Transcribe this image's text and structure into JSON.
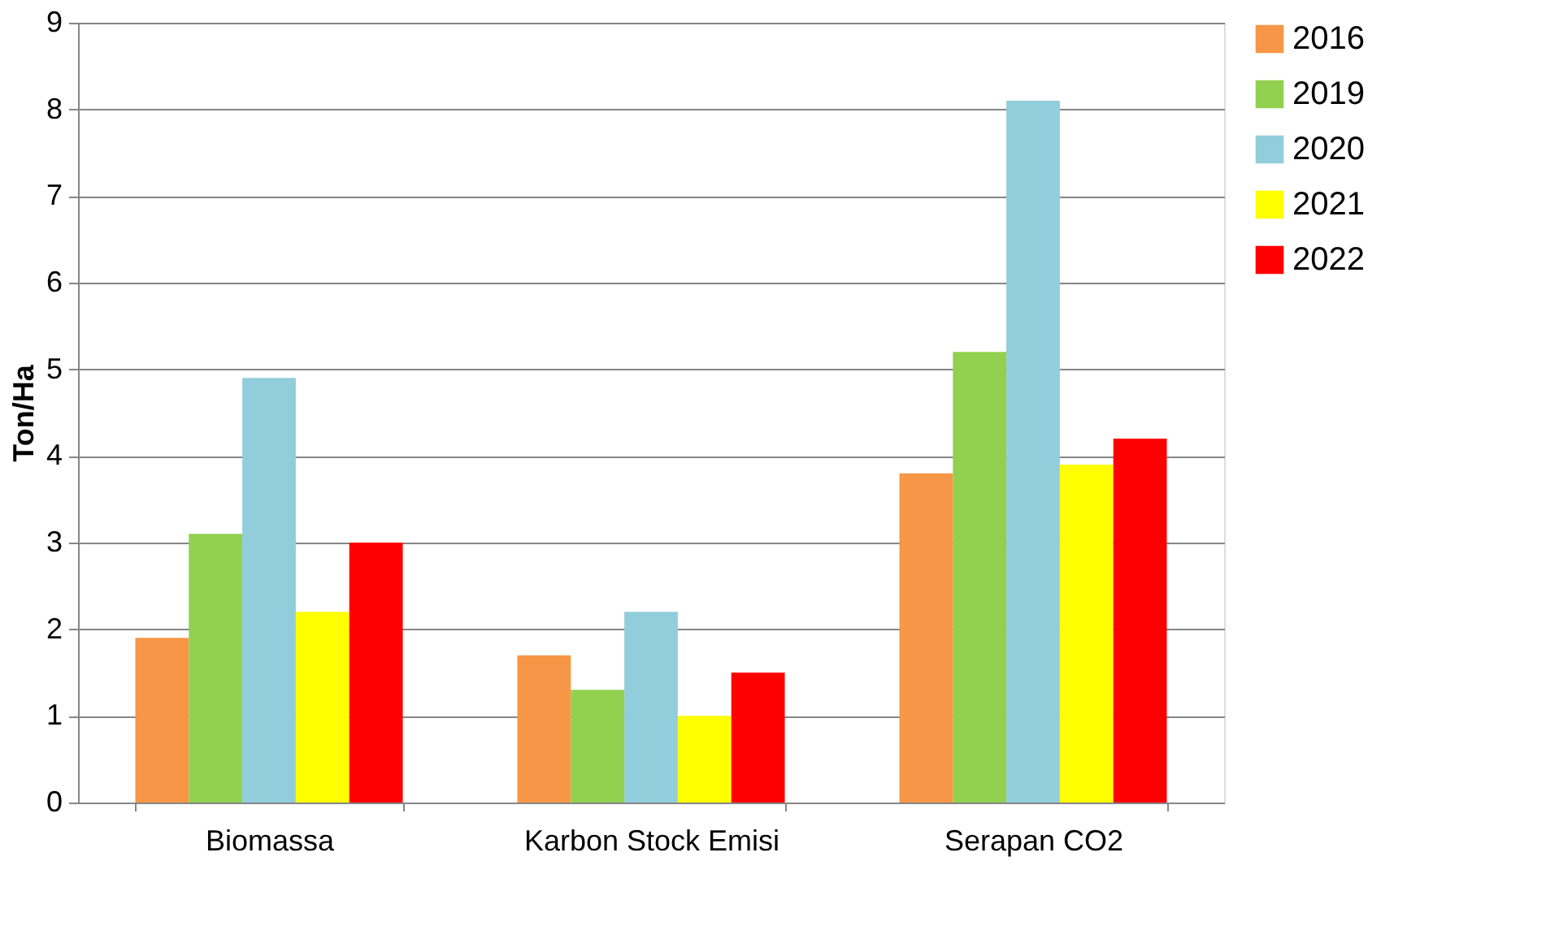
{
  "chart_data": {
    "type": "bar",
    "ylabel": "Ton/Ha",
    "categories": [
      "Biomassa",
      "Karbon Stock Emisi",
      "Serapan CO2"
    ],
    "series": [
      {
        "name": "2016",
        "color": "#f79646",
        "values": [
          1.9,
          1.7,
          3.8
        ]
      },
      {
        "name": "2019",
        "color": "#92d050",
        "values": [
          3.1,
          1.3,
          5.2
        ]
      },
      {
        "name": "2020",
        "color": "#92cddc",
        "values": [
          4.9,
          2.2,
          8.1
        ]
      },
      {
        "name": "2021",
        "color": "#ffff00",
        "values": [
          2.2,
          1.0,
          3.9
        ]
      },
      {
        "name": "2022",
        "color": "#ff0000",
        "values": [
          3.0,
          1.5,
          4.2
        ]
      }
    ],
    "ylim": [
      0,
      9
    ],
    "yticks": [
      0,
      1,
      2,
      3,
      4,
      5,
      6,
      7,
      8,
      9
    ],
    "grid": "y",
    "legend": "right"
  }
}
